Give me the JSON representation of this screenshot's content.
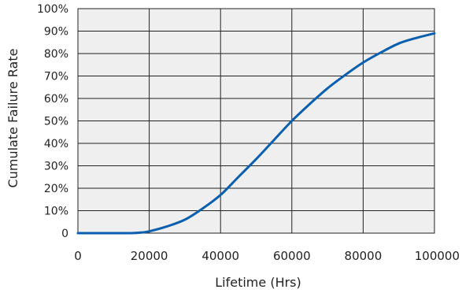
{
  "chart_data": {
    "type": "line",
    "xlabel": "Lifetime (Hrs)",
    "ylabel": "Cumulate Failure Rate",
    "xlim": [
      0,
      100000
    ],
    "ylim": [
      0,
      100
    ],
    "x_ticks": [
      "0",
      "20000",
      "40000",
      "60000",
      "80000",
      "100000"
    ],
    "y_ticks": [
      "0",
      "10%",
      "20%",
      "30%",
      "40%",
      "50%",
      "60%",
      "70%",
      "80%",
      "90%",
      "100%"
    ],
    "grid": true,
    "legend": "none",
    "colors": {
      "line": "#0a5fae",
      "plot_background": "#efefef",
      "grid": "#222222"
    },
    "series": [
      {
        "x": [
          0,
          5000,
          10000,
          15000,
          18000,
          20000,
          25000,
          30000,
          35000,
          40000,
          45000,
          50000,
          55000,
          60000,
          65000,
          70000,
          75000,
          80000,
          85000,
          90000,
          95000,
          100000
        ],
        "y": [
          0,
          0,
          0,
          0,
          0.3,
          0.8,
          3,
          6,
          11,
          17,
          25,
          33,
          41.5,
          50,
          57.5,
          64.5,
          70.5,
          76,
          80.5,
          84.5,
          87,
          89
        ]
      }
    ]
  }
}
